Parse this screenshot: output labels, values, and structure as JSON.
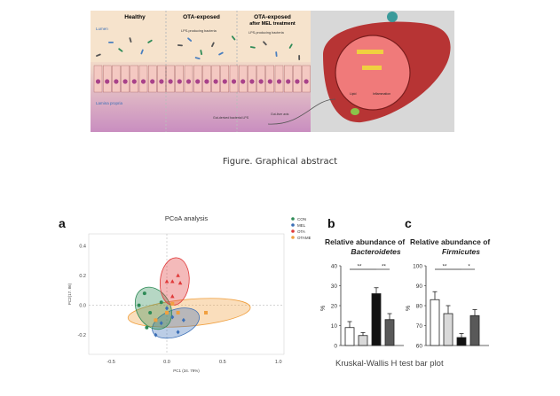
{
  "graphical_abstract": {
    "panel_titles": [
      "Healthy",
      "OTA-exposed",
      "OTA-exposed",
      "after MEL treatment"
    ],
    "lumen_label": "Lumen",
    "lamina_label": "Lamina propria",
    "lps_bacteria_1": "LPS-producing bacteria",
    "lps_bacteria_2": "LPS-producing bacteria",
    "gut_lps_label": "Gut-derived bacterial LPS",
    "gut_liver_label": "Gut-liver axis",
    "liver_label_1": "Lipid",
    "liver_label_2": "Inflammation"
  },
  "caption": "Figure. Graphical abstract",
  "panel_letters": {
    "a": "a",
    "b": "b",
    "c": "c"
  },
  "footnote": "Kruskal-Wallis H test bar plot",
  "colors": {
    "CON": "#2e8b57",
    "MEL": "#3b6fb6",
    "OTA": "#e03a3a",
    "OTAMEL": "#f0a040"
  },
  "chart_data": [
    {
      "type": "scatter",
      "title": "PCoA analysis",
      "xlabel": "PC1 (34. 79%)",
      "ylabel": "PC2(17. 86)",
      "xlim": [
        -0.7,
        1.05
      ],
      "ylim": [
        -0.33,
        0.48
      ],
      "xticks": [
        "-0.5",
        "0.0",
        "0.5",
        "1.0"
      ],
      "yticks": [
        "0.4",
        "0.2",
        "0.0",
        "-0.2"
      ],
      "legend": [
        "CON",
        "MEL",
        "OTA",
        "OTAMEL"
      ],
      "legend_position": "top-right",
      "series": [
        {
          "name": "CON",
          "points": [
            [
              -0.25,
              0.0
            ],
            [
              -0.15,
              -0.05
            ],
            [
              -0.2,
              0.08
            ],
            [
              -0.1,
              -0.1
            ],
            [
              -0.05,
              0.02
            ],
            [
              -0.18,
              -0.15
            ]
          ]
        },
        {
          "name": "MEL",
          "points": [
            [
              -0.05,
              -0.12
            ],
            [
              0.05,
              -0.08
            ],
            [
              0.1,
              -0.18
            ],
            [
              0.0,
              -0.02
            ],
            [
              0.15,
              -0.1
            ],
            [
              -0.1,
              -0.2
            ]
          ]
        },
        {
          "name": "OTA",
          "points": [
            [
              0.0,
              0.16
            ],
            [
              0.05,
              0.16
            ],
            [
              0.12,
              0.15
            ],
            [
              0.05,
              0.06
            ],
            [
              0.1,
              0.2
            ]
          ]
        },
        {
          "name": "OTAMEL",
          "points": [
            [
              0.0,
              -0.05
            ],
            [
              0.1,
              -0.05
            ],
            [
              0.35,
              -0.05
            ],
            [
              0.05,
              0.01
            ],
            [
              -0.1,
              -0.1
            ]
          ]
        }
      ]
    },
    {
      "type": "bar",
      "title": "Relative abundance of",
      "subtitle": "Bacteroidetes",
      "ylabel": "%",
      "ylim": [
        0,
        40
      ],
      "yticks": [
        "40",
        "30",
        "20",
        "10",
        "0"
      ],
      "values": [
        9,
        5,
        26,
        13
      ],
      "errors": [
        3,
        1.5,
        3,
        3
      ],
      "significance": [
        "**",
        "**"
      ]
    },
    {
      "type": "bar",
      "title": "Relative abundance of",
      "subtitle": "Firmicutes",
      "ylabel": "%",
      "ylim": [
        60,
        100
      ],
      "yticks": [
        "100",
        "90",
        "80",
        "70",
        "60"
      ],
      "values": [
        83,
        76,
        64,
        75
      ],
      "errors": [
        4,
        4,
        2,
        3
      ],
      "significance": [
        "**",
        "*"
      ]
    }
  ]
}
